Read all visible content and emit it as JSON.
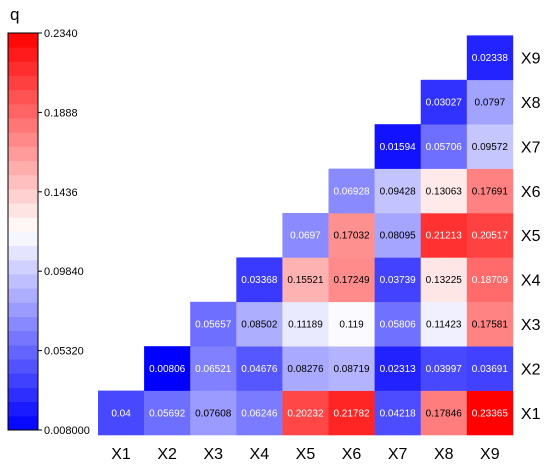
{
  "chart_data": {
    "type": "heatmap",
    "colorbar_label": "q",
    "colorbar_ticks": [
      "0.2340",
      "0.1888",
      "0.1436",
      "0.09840",
      "0.05320",
      "0.008000"
    ],
    "vmin": 0.008,
    "vmax": 0.234,
    "colormap": [
      "#0000ff",
      "#ffffff",
      "#ff0000"
    ],
    "x_labels": [
      "X1",
      "X2",
      "X3",
      "X4",
      "X5",
      "X6",
      "X7",
      "X8",
      "X9"
    ],
    "y_labels": [
      "X1",
      "X2",
      "X3",
      "X4",
      "X5",
      "X6",
      "X7",
      "X8",
      "X9"
    ],
    "cells": [
      {
        "row": "X1",
        "col": "X1",
        "value": 0.04,
        "label": "0.04"
      },
      {
        "row": "X1",
        "col": "X2",
        "value": 0.05692,
        "label": "0.05692"
      },
      {
        "row": "X1",
        "col": "X3",
        "value": 0.07608,
        "label": "0.07608"
      },
      {
        "row": "X1",
        "col": "X4",
        "value": 0.06246,
        "label": "0.06246"
      },
      {
        "row": "X1",
        "col": "X5",
        "value": 0.20232,
        "label": "0.20232"
      },
      {
        "row": "X1",
        "col": "X6",
        "value": 0.21782,
        "label": "0.21782"
      },
      {
        "row": "X1",
        "col": "X7",
        "value": 0.04218,
        "label": "0.04218"
      },
      {
        "row": "X1",
        "col": "X8",
        "value": 0.17846,
        "label": "0.17846"
      },
      {
        "row": "X1",
        "col": "X9",
        "value": 0.23365,
        "label": "0.23365"
      },
      {
        "row": "X2",
        "col": "X2",
        "value": 0.00806,
        "label": "0.00806"
      },
      {
        "row": "X2",
        "col": "X3",
        "value": 0.06521,
        "label": "0.06521"
      },
      {
        "row": "X2",
        "col": "X4",
        "value": 0.04676,
        "label": "0.04676"
      },
      {
        "row": "X2",
        "col": "X5",
        "value": 0.08276,
        "label": "0.08276"
      },
      {
        "row": "X2",
        "col": "X6",
        "value": 0.08719,
        "label": "0.08719"
      },
      {
        "row": "X2",
        "col": "X7",
        "value": 0.02313,
        "label": "0.02313"
      },
      {
        "row": "X2",
        "col": "X8",
        "value": 0.03997,
        "label": "0.03997"
      },
      {
        "row": "X2",
        "col": "X9",
        "value": 0.03691,
        "label": "0.03691"
      },
      {
        "row": "X3",
        "col": "X3",
        "value": 0.05657,
        "label": "0.05657"
      },
      {
        "row": "X3",
        "col": "X4",
        "value": 0.08502,
        "label": "0.08502"
      },
      {
        "row": "X3",
        "col": "X5",
        "value": 0.11189,
        "label": "0.11189"
      },
      {
        "row": "X3",
        "col": "X6",
        "value": 0.119,
        "label": "0.119"
      },
      {
        "row": "X3",
        "col": "X7",
        "value": 0.05806,
        "label": "0.05806"
      },
      {
        "row": "X3",
        "col": "X8",
        "value": 0.11423,
        "label": "0.11423"
      },
      {
        "row": "X3",
        "col": "X9",
        "value": 0.17581,
        "label": "0.17581"
      },
      {
        "row": "X4",
        "col": "X4",
        "value": 0.03368,
        "label": "0.03368"
      },
      {
        "row": "X4",
        "col": "X5",
        "value": 0.15521,
        "label": "0.15521"
      },
      {
        "row": "X4",
        "col": "X6",
        "value": 0.17249,
        "label": "0.17249"
      },
      {
        "row": "X4",
        "col": "X7",
        "value": 0.03739,
        "label": "0.03739"
      },
      {
        "row": "X4",
        "col": "X8",
        "value": 0.13225,
        "label": "0.13225"
      },
      {
        "row": "X4",
        "col": "X9",
        "value": 0.18709,
        "label": "0.18709"
      },
      {
        "row": "X5",
        "col": "X5",
        "value": 0.0697,
        "label": "0.0697"
      },
      {
        "row": "X5",
        "col": "X6",
        "value": 0.17032,
        "label": "0.17032"
      },
      {
        "row": "X5",
        "col": "X7",
        "value": 0.08095,
        "label": "0.08095"
      },
      {
        "row": "X5",
        "col": "X8",
        "value": 0.21213,
        "label": "0.21213"
      },
      {
        "row": "X5",
        "col": "X9",
        "value": 0.20517,
        "label": "0.20517"
      },
      {
        "row": "X6",
        "col": "X6",
        "value": 0.06928,
        "label": "0.06928"
      },
      {
        "row": "X6",
        "col": "X7",
        "value": 0.09428,
        "label": "0.09428"
      },
      {
        "row": "X6",
        "col": "X8",
        "value": 0.13063,
        "label": "0.13063"
      },
      {
        "row": "X6",
        "col": "X9",
        "value": 0.17691,
        "label": "0.17691"
      },
      {
        "row": "X7",
        "col": "X7",
        "value": 0.01594,
        "label": "0.01594"
      },
      {
        "row": "X7",
        "col": "X8",
        "value": 0.05706,
        "label": "0.05706"
      },
      {
        "row": "X7",
        "col": "X9",
        "value": 0.09572,
        "label": "0.09572"
      },
      {
        "row": "X8",
        "col": "X8",
        "value": 0.03027,
        "label": "0.03027"
      },
      {
        "row": "X8",
        "col": "X9",
        "value": 0.0797,
        "label": "0.0797"
      },
      {
        "row": "X9",
        "col": "X9",
        "value": 0.02338,
        "label": "0.02338"
      }
    ]
  }
}
